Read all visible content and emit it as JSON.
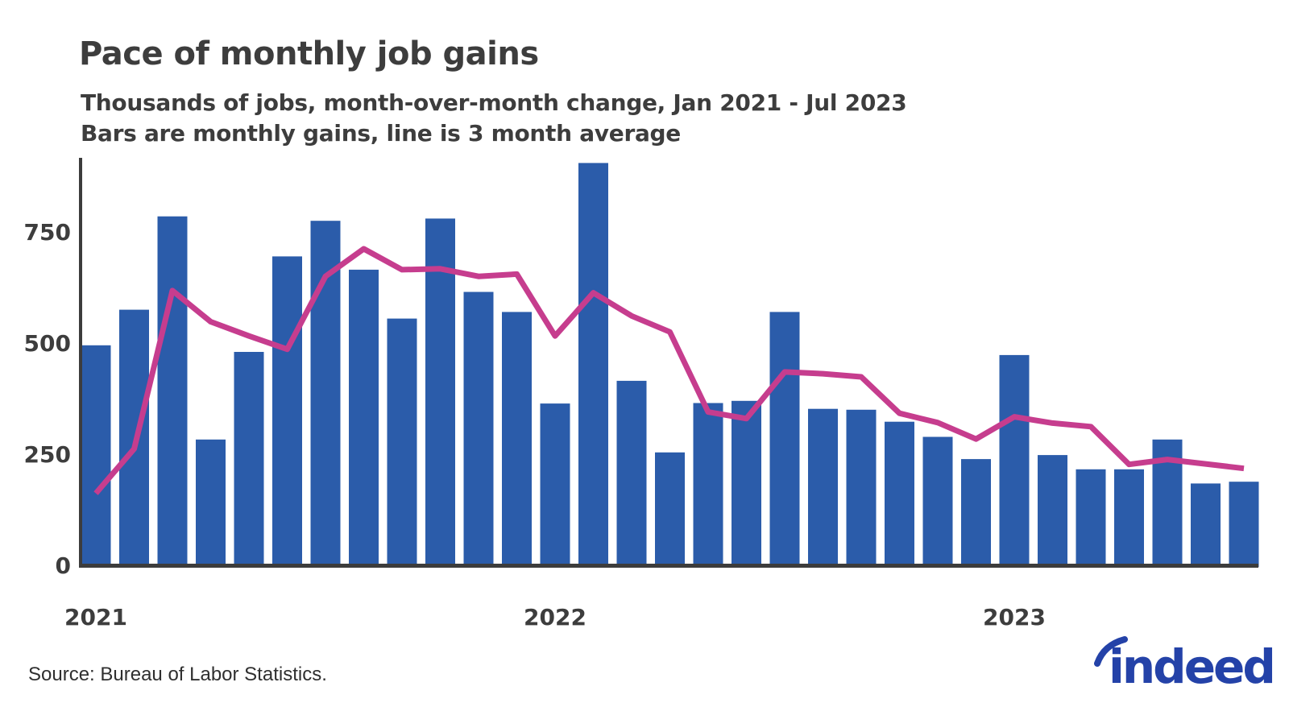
{
  "header": {
    "title": "Pace of monthly job gains",
    "subtitle_line1": "Thousands of jobs, month-over-month change, Jan 2021 - Jul 2023",
    "subtitle_line2": "Bars are monthly gains, line is 3 month average"
  },
  "footer": {
    "source": "Source: Bureau of Labor Statistics.",
    "logo_text": "indeed"
  },
  "colors": {
    "bar": "#2b5caa",
    "line": "#c63d8e",
    "axis": "#3c3c3c",
    "text": "#3d3d3d",
    "logo": "#2442a8"
  },
  "chart_data": {
    "type": "bar",
    "title": "Pace of monthly job gains",
    "xlabel": "",
    "ylabel": "Thousands of jobs",
    "ylim": [
      0,
      920
    ],
    "grid": false,
    "legend_position": "none",
    "y_ticks": [
      0,
      250,
      500,
      750
    ],
    "x_tick_labels": [
      "2021",
      "2022",
      "2023"
    ],
    "x": [
      "Jan 2021",
      "Feb 2021",
      "Mar 2021",
      "Apr 2021",
      "May 2021",
      "Jun 2021",
      "Jul 2021",
      "Aug 2021",
      "Sep 2021",
      "Oct 2021",
      "Nov 2021",
      "Dec 2021",
      "Jan 2022",
      "Feb 2022",
      "Mar 2022",
      "Apr 2022",
      "May 2022",
      "Jun 2022",
      "Jul 2022",
      "Aug 2022",
      "Sep 2022",
      "Oct 2022",
      "Nov 2022",
      "Dec 2022",
      "Jan 2023",
      "Feb 2023",
      "Mar 2023",
      "Apr 2023",
      "May 2023",
      "Jun 2023",
      "Jul 2023"
    ],
    "series": [
      {
        "name": "Monthly job gains",
        "type": "bar",
        "values": [
          495,
          575,
          785,
          283,
          480,
          695,
          775,
          665,
          555,
          780,
          615,
          570,
          364,
          905,
          415,
          254,
          365,
          370,
          570,
          352,
          350,
          323,
          289,
          239,
          473,
          248,
          216,
          216,
          283,
          184,
          188
        ]
      },
      {
        "name": "3 month average",
        "type": "line",
        "values": [
          162,
          262,
          618,
          548,
          516,
          486,
          650,
          712,
          665,
          667,
          650,
          655,
          516,
          613,
          561,
          525,
          345,
          330,
          435,
          431,
          424,
          342,
          321,
          284,
          334,
          320,
          312,
          227,
          238,
          228,
          218
        ]
      }
    ]
  }
}
